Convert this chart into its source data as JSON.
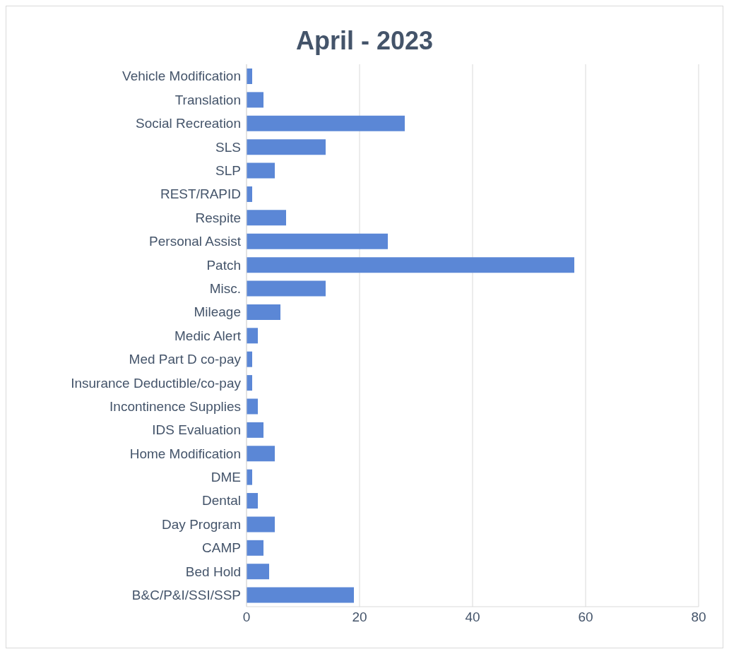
{
  "chart_data": {
    "type": "bar",
    "title": "April - 2023",
    "orientation": "horizontal",
    "categories": [
      "Vehicle Modification",
      "Translation",
      "Social Recreation",
      "SLS",
      "SLP",
      "REST/RAPID",
      "Respite",
      "Personal Assist",
      "Patch",
      "Misc.",
      "Mileage",
      "Medic Alert",
      "Med Part D co-pay",
      "Insurance Deductible/co-pay",
      "Incontinence Supplies",
      "IDS Evaluation",
      "Home Modification",
      "DME",
      "Dental",
      "Day Program",
      "CAMP",
      "Bed Hold",
      "B&C/P&I/SSI/SSP"
    ],
    "values": [
      1,
      3,
      28,
      14,
      5,
      1,
      7,
      25,
      58,
      14,
      6,
      2,
      1,
      1,
      2,
      3,
      5,
      1,
      2,
      5,
      3,
      4,
      19
    ],
    "color": "#5b87d6",
    "xlim": [
      0,
      80
    ],
    "xticks": [
      0,
      20,
      40,
      60,
      80
    ],
    "grid": "x"
  }
}
